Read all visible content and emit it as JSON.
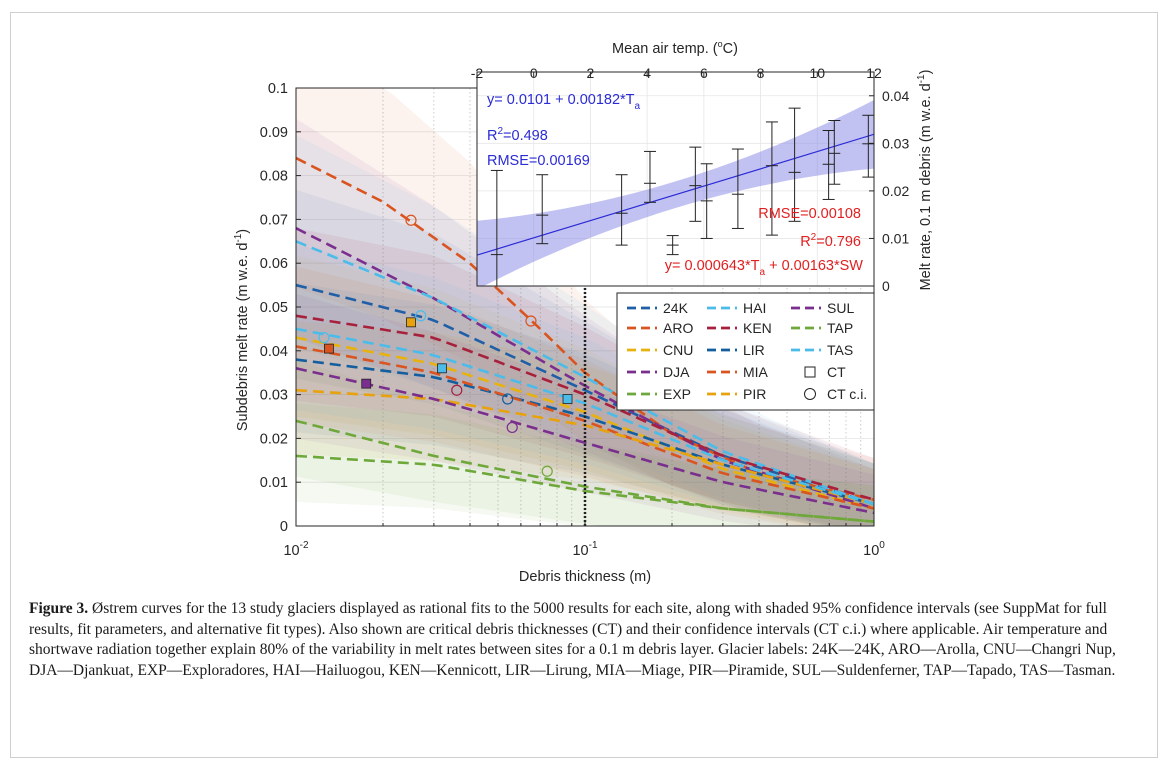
{
  "colors": {
    "24K": "#1f5fa8",
    "ARO": "#d9541e",
    "CNU": "#e8b20e",
    "DJA": "#7a2e8e",
    "EXP": "#6fa83a",
    "HAI": "#4bbce9",
    "KEN": "#a8213c",
    "LIR": "#135e9e",
    "MIA": "#d9541e",
    "PIR": "#e8a20e",
    "SUL": "#7a2e8e",
    "TAP": "#6fa83a",
    "TAS": "#4bbce9",
    "inset_blue": "#2b2bd6",
    "inset_red": "#e02020",
    "band_blue": "#8f8fe8"
  },
  "chart_data": [
    {
      "type": "line",
      "subtype": "main-ostrem-curves",
      "xlabel": "Debris thickness (m)",
      "ylabel": "Subdebris melt rate (m w.e. d",
      "ylabel_sup": "-1",
      "ylabel_end": ")",
      "x_scale": "log",
      "xlim": [
        0.01,
        1
      ],
      "ylim": [
        0,
        0.1
      ],
      "x_ticks": [
        {
          "v": 0.01,
          "base": "10",
          "exp": "-2"
        },
        {
          "v": 0.1,
          "base": "10",
          "exp": "-1"
        },
        {
          "v": 1,
          "base": "10",
          "exp": "0"
        }
      ],
      "y_ticks": [
        "0",
        "0.01",
        "0.02",
        "0.03",
        "0.04",
        "0.05",
        "0.06",
        "0.07",
        "0.08",
        "0.09",
        "0.1"
      ],
      "reference_line_x": 0.1,
      "series": [
        {
          "name": "24K",
          "x": [
            0.01,
            0.03,
            0.1,
            0.3,
            1
          ],
          "y": [
            0.055,
            0.047,
            0.031,
            0.016,
            0.005
          ]
        },
        {
          "name": "ARO",
          "x": [
            0.01,
            0.02,
            0.04,
            0.07,
            0.1,
            0.2,
            0.4,
            1
          ],
          "y": [
            0.084,
            0.074,
            0.06,
            0.045,
            0.035,
            0.021,
            0.012,
            0.006
          ]
        },
        {
          "name": "CNU",
          "x": [
            0.01,
            0.03,
            0.1,
            0.3,
            1
          ],
          "y": [
            0.043,
            0.037,
            0.026,
            0.013,
            0.004
          ]
        },
        {
          "name": "DJA",
          "x": [
            0.01,
            0.03,
            0.1,
            0.3,
            1
          ],
          "y": [
            0.068,
            0.052,
            0.032,
            0.015,
            0.004
          ]
        },
        {
          "name": "EXP",
          "x": [
            0.01,
            0.03,
            0.1,
            0.3,
            1
          ],
          "y": [
            0.024,
            0.016,
            0.009,
            0.004,
            0.001
          ]
        },
        {
          "name": "HAI",
          "x": [
            0.01,
            0.03,
            0.1,
            0.3,
            1
          ],
          "y": [
            0.065,
            0.052,
            0.034,
            0.017,
            0.005
          ]
        },
        {
          "name": "KEN",
          "x": [
            0.01,
            0.03,
            0.1,
            0.3,
            1
          ],
          "y": [
            0.048,
            0.043,
            0.03,
            0.016,
            0.006
          ]
        },
        {
          "name": "LIR",
          "x": [
            0.01,
            0.03,
            0.1,
            0.3,
            1
          ],
          "y": [
            0.038,
            0.034,
            0.025,
            0.014,
            0.005
          ]
        },
        {
          "name": "MIA",
          "x": [
            0.01,
            0.03,
            0.1,
            0.3,
            1
          ],
          "y": [
            0.041,
            0.035,
            0.024,
            0.012,
            0.004
          ]
        },
        {
          "name": "PIR",
          "x": [
            0.01,
            0.03,
            0.1,
            0.3,
            1
          ],
          "y": [
            0.031,
            0.029,
            0.023,
            0.014,
            0.005
          ]
        },
        {
          "name": "SUL",
          "x": [
            0.01,
            0.03,
            0.1,
            0.3,
            1
          ],
          "y": [
            0.036,
            0.029,
            0.019,
            0.01,
            0.003
          ]
        },
        {
          "name": "TAP",
          "x": [
            0.01,
            0.03,
            0.1,
            0.3,
            1
          ],
          "y": [
            0.016,
            0.014,
            0.008,
            0.004,
            0.001
          ]
        },
        {
          "name": "TAS",
          "x": [
            0.01,
            0.03,
            0.1,
            0.3,
            1
          ],
          "y": [
            0.045,
            0.039,
            0.028,
            0.015,
            0.005
          ]
        }
      ],
      "ct_points": [
        {
          "glacier": "ARO",
          "x": 0.013,
          "y": 0.0405
        },
        {
          "glacier": "DJA",
          "x": 0.0175,
          "y": 0.0325
        },
        {
          "glacier": "PIR",
          "x": 0.025,
          "y": 0.0465
        },
        {
          "glacier": "TAS",
          "x": 0.032,
          "y": 0.036
        },
        {
          "glacier": "HAI",
          "x": 0.087,
          "y": 0.029
        }
      ],
      "ct_ci_points": [
        {
          "glacier": "TAS",
          "x": 0.0125,
          "y": 0.043
        },
        {
          "glacier": "ARO",
          "x": 0.025,
          "y": 0.0698
        },
        {
          "glacier": "HAI",
          "x": 0.027,
          "y": 0.048
        },
        {
          "glacier": "KEN",
          "x": 0.036,
          "y": 0.031
        },
        {
          "glacier": "LIR",
          "x": 0.054,
          "y": 0.029
        },
        {
          "glacier": "SUL",
          "x": 0.056,
          "y": 0.0225
        },
        {
          "glacier": "ARO",
          "x": 0.065,
          "y": 0.0468
        },
        {
          "glacier": "EXP",
          "x": 0.074,
          "y": 0.0125
        }
      ],
      "legend": {
        "placement": "center-right",
        "entries": [
          "24K",
          "HAI",
          "SUL",
          "ARO",
          "KEN",
          "TAP",
          "CNU",
          "LIR",
          "TAS",
          "DJA",
          "MIA",
          "CT",
          "EXP",
          "PIR",
          "CT c.i."
        ]
      }
    },
    {
      "type": "scatter",
      "subtype": "inset-regression",
      "xlabel": "Mean air temp. (",
      "xlabel_deg": "o",
      "xlabel_end": "C)",
      "ylabel": "Melt rate, 0.1 m debris (m w.e. d",
      "ylabel_sup": "-1",
      "ylabel_end": ")",
      "xlim": [
        -2,
        12
      ],
      "ylim": [
        0,
        0.045
      ],
      "x_ticks": [
        "-2",
        "0",
        "2",
        "4",
        "6",
        "8",
        "10",
        "12"
      ],
      "y_ticks": [
        "0",
        "0.01",
        "0.02",
        "0.03",
        "0.04"
      ],
      "fit_x": [
        -2,
        12
      ],
      "fit_y": [
        0.0065,
        0.0319
      ],
      "points": [
        {
          "x": -1.3,
          "y": 0.0066,
          "lo": 0.0,
          "hi": 0.0243
        },
        {
          "x": 0.3,
          "y": 0.0149,
          "lo": 0.0089,
          "hi": 0.0234
        },
        {
          "x": 3.1,
          "y": 0.0153,
          "lo": 0.0086,
          "hi": 0.0234
        },
        {
          "x": 4.1,
          "y": 0.0216,
          "lo": 0.0176,
          "hi": 0.0283
        },
        {
          "x": 4.9,
          "y": 0.0086,
          "lo": 0.0066,
          "hi": 0.0106
        },
        {
          "x": 5.7,
          "y": 0.0211,
          "lo": 0.0136,
          "hi": 0.0292
        },
        {
          "x": 6.1,
          "y": 0.0179,
          "lo": 0.01,
          "hi": 0.0257
        },
        {
          "x": 7.2,
          "y": 0.0193,
          "lo": 0.0121,
          "hi": 0.0288
        },
        {
          "x": 8.4,
          "y": 0.0253,
          "lo": 0.0107,
          "hi": 0.0345
        },
        {
          "x": 9.2,
          "y": 0.0239,
          "lo": 0.0136,
          "hi": 0.0374
        },
        {
          "x": 10.4,
          "y": 0.0256,
          "lo": 0.0182,
          "hi": 0.0327
        },
        {
          "x": 10.6,
          "y": 0.0279,
          "lo": 0.0214,
          "hi": 0.0348
        },
        {
          "x": 11.8,
          "y": 0.0299,
          "lo": 0.0229,
          "hi": 0.0359
        }
      ],
      "blue_text": {
        "eq": "y= 0.0101 + 0.00182*T",
        "eq_sub": "a",
        "r2_label": "R",
        "r2_sup": "2",
        "r2_value": "=0.498",
        "rmse": "RMSE=0.00169"
      },
      "red_text": {
        "rmse": "RMSE=0.00108",
        "r2_label": "R",
        "r2_sup": "2",
        "r2_value": "=0.796",
        "eq_a": "y= 0.000643*T",
        "eq_sub": "a",
        "eq_b": " + 0.00163*SW"
      }
    }
  ],
  "caption": {
    "label": "Figure 3.",
    "text": " Østrem curves for the 13 study glaciers displayed as rational fits to the 5000 results for each site, along with shaded 95% confidence intervals (see SuppMat for full results, fit parameters, and alternative fit types). Also shown are critical debris thicknesses (CT) and their confidence intervals (CT c.i.) where applicable. Air temperature and shortwave radiation together explain 80% of the variability in melt rates between sites for a 0.1 m debris layer. Glacier labels: 24K—24K, ARO—Arolla, CNU—Changri Nup, DJA—Djankuat, EXP—Exploradores, HAI—Hailuogou, KEN—Kennicott, LIR—Lirung, MIA—Miage, PIR—Piramide, SUL—Suldenferner, TAP—Tapado, TAS—Tasman."
  }
}
